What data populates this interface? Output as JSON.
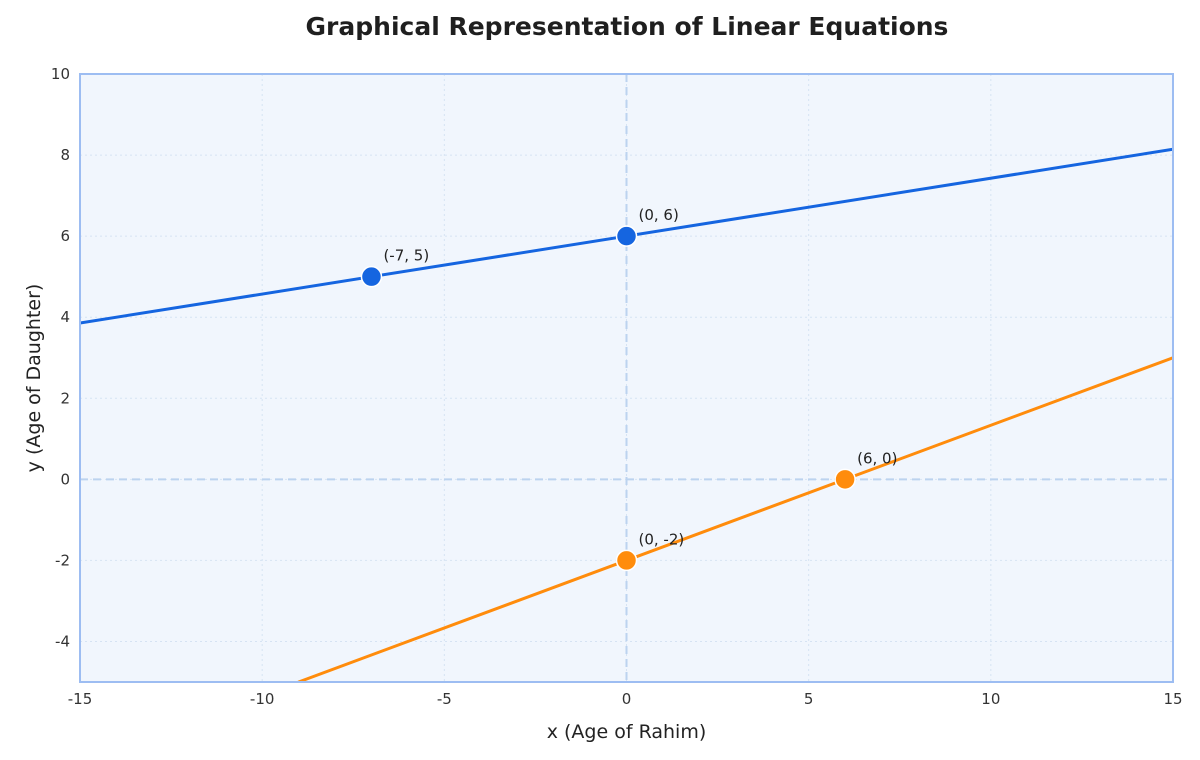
{
  "chart_data": {
    "type": "line",
    "title": "Graphical Representation of Linear Equations",
    "xlabel": "x (Age of Rahim)",
    "ylabel": "y (Age of Daughter)",
    "xlim": [
      -15,
      15
    ],
    "ylim": [
      -5,
      10
    ],
    "xticks": [
      -15,
      -10,
      -5,
      0,
      5,
      10,
      15
    ],
    "yticks": [
      -4,
      -2,
      0,
      2,
      4,
      6,
      8,
      10
    ],
    "grid": true,
    "background_color": "#f1f6fd",
    "frame_color": "#9dbdf2",
    "zero_line_color": "#bcd3ef",
    "series": [
      {
        "color": "#1565e0",
        "x": [
          -15,
          15
        ],
        "y": [
          3.857,
          8.143
        ],
        "points": [
          {
            "x": -7,
            "y": 5,
            "label": "(-7, 5)"
          },
          {
            "x": 0,
            "y": 6,
            "label": "(0, 6)"
          }
        ]
      },
      {
        "color": "#ff8c0c",
        "x": [
          -9,
          15
        ],
        "y": [
          -5,
          3
        ],
        "points": [
          {
            "x": 0,
            "y": -2,
            "label": "(0, -2)"
          },
          {
            "x": 6,
            "y": 0,
            "label": "(6, 0)"
          }
        ]
      }
    ]
  }
}
